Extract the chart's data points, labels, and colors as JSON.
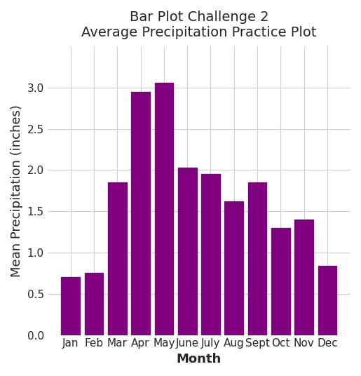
{
  "title": "Bar Plot Challenge 2\nAverage Precipitation Practice Plot",
  "xlabel": "Month",
  "ylabel": "Mean Precipitation (inches)",
  "months": [
    "Jan",
    "Feb",
    "Mar",
    "Apr",
    "May",
    "June",
    "July",
    "Aug",
    "Sept",
    "Oct",
    "Nov",
    "Dec"
  ],
  "values": [
    0.7,
    0.75,
    1.85,
    2.95,
    3.06,
    2.03,
    1.95,
    1.62,
    1.85,
    1.3,
    1.4,
    0.84
  ],
  "bar_color": "#800080",
  "ylim": [
    0,
    3.5
  ],
  "yticks": [
    0.0,
    0.5,
    1.0,
    1.5,
    2.0,
    2.5,
    3.0
  ],
  "title_fontsize": 14,
  "label_fontsize": 13,
  "tick_fontsize": 11,
  "grid_color": "#d0d0d0",
  "background_color": "#f5f5f5"
}
